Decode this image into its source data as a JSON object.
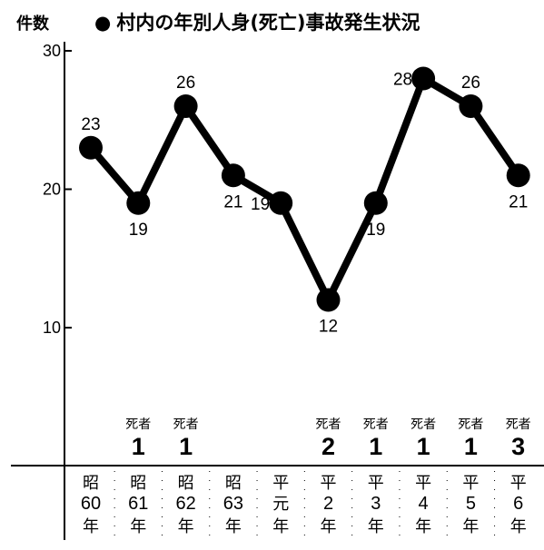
{
  "title_bullet": "●",
  "title": "村内の年別人身(死亡)事故発生状況",
  "ylabel": "件数",
  "chart_data": {
    "type": "line",
    "title": "村内の年別人身(死亡)事故発生状況",
    "ylabel": "件数",
    "xlabel": "",
    "ylim": [
      0,
      30
    ],
    "yticks": [
      10,
      20,
      30
    ],
    "grid": false,
    "categories": [
      {
        "era": "昭",
        "num": "60",
        "unit": "年"
      },
      {
        "era": "昭",
        "num": "61",
        "unit": "年"
      },
      {
        "era": "昭",
        "num": "62",
        "unit": "年"
      },
      {
        "era": "昭",
        "num": "63",
        "unit": "年"
      },
      {
        "era": "平",
        "num": "元",
        "unit": "年"
      },
      {
        "era": "平",
        "num": "2",
        "unit": "年"
      },
      {
        "era": "平",
        "num": "3",
        "unit": "年"
      },
      {
        "era": "平",
        "num": "4",
        "unit": "年"
      },
      {
        "era": "平",
        "num": "5",
        "unit": "年"
      },
      {
        "era": "平",
        "num": "6",
        "unit": "年"
      }
    ],
    "values": [
      23,
      19,
      26,
      21,
      19,
      12,
      19,
      28,
      26,
      21
    ],
    "label_positions": [
      "above",
      "below",
      "above",
      "below",
      "left",
      "below",
      "below",
      "left",
      "above",
      "below"
    ],
    "deaths_label": "死者",
    "deaths": [
      null,
      1,
      1,
      null,
      null,
      2,
      1,
      1,
      1,
      3
    ]
  }
}
